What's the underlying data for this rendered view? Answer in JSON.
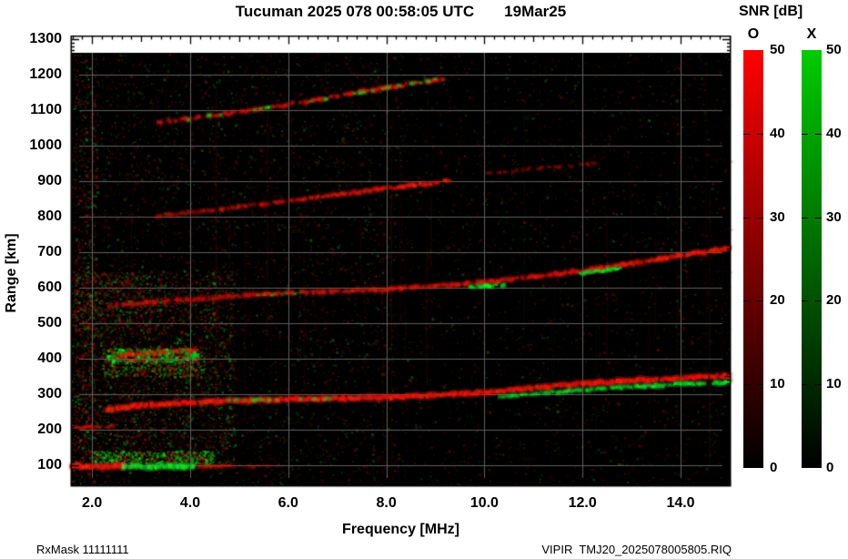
{
  "header": {
    "title": "Tucuman 2025 078 00:58:05 UTC",
    "date": "19Mar25"
  },
  "axes": {
    "x": {
      "label": "Frequency [MHz]",
      "ticks": [
        "2.0",
        "4.0",
        "6.0",
        "8.0",
        "10.0",
        "12.0",
        "14.0"
      ],
      "tick_values": [
        2,
        4,
        6,
        8,
        10,
        12,
        14
      ],
      "minor_step_mhz": 0.2
    },
    "y": {
      "label": "Range [km]",
      "ticks": [
        "100",
        "200",
        "300",
        "400",
        "500",
        "600",
        "700",
        "800",
        "900",
        "1000",
        "1100",
        "1200",
        "1300"
      ],
      "tick_values": [
        100,
        200,
        300,
        400,
        500,
        600,
        700,
        800,
        900,
        1000,
        1100,
        1200,
        1300
      ],
      "minor_step_km": 10
    }
  },
  "colorbar": {
    "title": "SNR [dB]",
    "min": 0,
    "max": 50,
    "ticks": [
      "50",
      "40",
      "30",
      "20",
      "10",
      "0"
    ],
    "tick_values": [
      50,
      40,
      30,
      20,
      10,
      0
    ],
    "bars": [
      {
        "label": "O",
        "color": "#ff0000"
      },
      {
        "label": "X",
        "color": "#00cc00"
      }
    ]
  },
  "footer": {
    "left": "RxMask 11111111",
    "right": "VIPIR  TMJ20_2025078005805.RIQ"
  },
  "chart_data": {
    "type": "heatmap",
    "kind": "ionogram",
    "station": "Tucuman",
    "title": "Tucuman 2025 078 00:58:05 UTC",
    "date": "19Mar25",
    "xlabel": "Frequency [MHz]",
    "ylabel": "Range [km]",
    "xlim": [
      1.57,
      15.02
    ],
    "ylim": [
      41,
      1309
    ],
    "data_range_km": [
      45,
      1260
    ],
    "grid": true,
    "grid_color": "#5f5f5f",
    "background": "#000000",
    "o_mode_color": "#ff0000",
    "x_mode_color": "#00cc00",
    "snr_scale_db": [
      0,
      50
    ],
    "traces": [
      {
        "name": "E-layer O-mode",
        "mode": "O",
        "w": 4,
        "a": 0.95,
        "gap": 0.04,
        "pts": [
          [
            1.57,
            97
          ],
          [
            2.7,
            97
          ]
        ]
      },
      {
        "name": "E-layer X-mode",
        "mode": "X",
        "w": 4,
        "a": 0.9,
        "gap": 0.08,
        "pts": [
          [
            2.6,
            96
          ],
          [
            4.1,
            96
          ]
        ]
      },
      {
        "name": "E-layer O-mode tail",
        "mode": "O",
        "w": 3,
        "a": 0.5,
        "gap": 0.25,
        "pts": [
          [
            4.1,
            97
          ],
          [
            4.8,
            97
          ]
        ]
      },
      {
        "name": "E-layer faint tail",
        "mode": "O",
        "w": 3,
        "a": 0.22,
        "gap": 0.45,
        "pts": [
          [
            4.8,
            97
          ],
          [
            5.8,
            97
          ]
        ]
      },
      {
        "name": "F-start low segment",
        "mode": "O",
        "w": 3,
        "a": 0.38,
        "gap": 0.3,
        "pts": [
          [
            1.57,
            205
          ],
          [
            2.5,
            211
          ]
        ]
      },
      {
        "name": "F 1-hop O-mode",
        "mode": "O",
        "w": 4,
        "a": 0.92,
        "gap": 0.03,
        "pts": [
          [
            2.3,
            258
          ],
          [
            3,
            268
          ],
          [
            4,
            277
          ],
          [
            5,
            282
          ],
          [
            6,
            286
          ],
          [
            7,
            288
          ],
          [
            8,
            291
          ],
          [
            9,
            297
          ],
          [
            10,
            305
          ],
          [
            11,
            318
          ],
          [
            12,
            329
          ],
          [
            13,
            338
          ],
          [
            14,
            345
          ],
          [
            15,
            352
          ]
        ]
      },
      {
        "name": "F 1-hop X-mode",
        "mode": "X",
        "w": 3.2,
        "a": 0.5,
        "a2": 0.95,
        "gap": 0.18,
        "pts": [
          [
            10.3,
            292
          ],
          [
            11,
            302
          ],
          [
            12,
            312
          ],
          [
            13,
            321
          ],
          [
            14,
            328
          ],
          [
            15,
            334
          ]
        ]
      },
      {
        "name": "F 1-hop X-mode patches",
        "mode": "X",
        "w": 3,
        "a": 0.45,
        "gap": 0.7,
        "pts": [
          [
            4.7,
            283
          ],
          [
            6.9,
            287
          ]
        ]
      },
      {
        "name": "Spread-echo streak O-mode",
        "mode": "O",
        "w": 3,
        "a": 0.5,
        "gap": 0.35,
        "pts": [
          [
            2.5,
            408
          ],
          [
            4.1,
            426
          ]
        ]
      },
      {
        "name": "F 2-hop O-mode",
        "mode": "O",
        "w": 3.8,
        "a": 0.42,
        "a2": 0.85,
        "gap": 0.12,
        "pts": [
          [
            2.3,
            549
          ],
          [
            3,
            557
          ],
          [
            4,
            567
          ],
          [
            5,
            577
          ],
          [
            6,
            585
          ],
          [
            7,
            590
          ],
          [
            8,
            596
          ],
          [
            9,
            605
          ],
          [
            10,
            616
          ],
          [
            11,
            631
          ],
          [
            12,
            648
          ],
          [
            13,
            668
          ],
          [
            14,
            690
          ],
          [
            15,
            712
          ]
        ]
      },
      {
        "name": "F 2-hop X-mode segment 1",
        "mode": "X",
        "w": 3,
        "a": 0.85,
        "gap": 0.15,
        "pts": [
          [
            9.7,
            601
          ],
          [
            10.4,
            608
          ]
        ]
      },
      {
        "name": "F 2-hop X-mode segment 2",
        "mode": "X",
        "w": 3,
        "a": 0.85,
        "gap": 0.15,
        "pts": [
          [
            11.95,
            640
          ],
          [
            12.8,
            655
          ]
        ]
      },
      {
        "name": "F 2-hop X-mode segment 3",
        "mode": "X",
        "w": 2.5,
        "a": 0.4,
        "gap": 0.5,
        "pts": [
          [
            5.3,
            578
          ],
          [
            6.2,
            585
          ]
        ]
      },
      {
        "name": "F 3-hop O-mode",
        "mode": "O",
        "w": 3.4,
        "a": 0.3,
        "a2": 0.85,
        "gap": 0.2,
        "pts": [
          [
            3.3,
            800
          ],
          [
            4,
            812
          ],
          [
            5,
            828
          ],
          [
            6,
            845
          ],
          [
            7,
            862
          ],
          [
            8,
            880
          ],
          [
            9,
            896
          ],
          [
            9.3,
            903
          ]
        ]
      },
      {
        "name": "F 3-hop faint extension",
        "mode": "O",
        "w": 3,
        "a": 0.3,
        "gap": 0.55,
        "pts": [
          [
            10,
            922
          ],
          [
            12.3,
            950
          ]
        ]
      },
      {
        "name": "F 4-hop O-mode",
        "mode": "O",
        "w": 3.4,
        "a": 0.42,
        "a2": 0.68,
        "gap": 0.25,
        "pts": [
          [
            3.3,
            1065
          ],
          [
            4.5,
            1085
          ],
          [
            5.5,
            1105
          ],
          [
            6.5,
            1127
          ],
          [
            7.5,
            1152
          ],
          [
            8.4,
            1172
          ],
          [
            9.2,
            1190
          ]
        ]
      },
      {
        "name": "F 4-hop X-mode specks",
        "mode": "X",
        "w": 3,
        "a": 0.55,
        "gap": 0.8,
        "pts": [
          [
            3.8,
            1073
          ],
          [
            5.0,
            1095
          ],
          [
            6.3,
            1122
          ],
          [
            7.3,
            1145
          ],
          [
            8.2,
            1168
          ],
          [
            9.0,
            1186
          ]
        ]
      }
    ],
    "noise": {
      "speckle_boxes": [
        {
          "n": 5200,
          "f": [
            1.57,
            15.02
          ],
          "km": [
            45,
            1260
          ],
          "green": 0.25,
          "alpha": [
            0.05,
            0.28
          ],
          "size": 2
        },
        {
          "n": 2400,
          "f": [
            1.57,
            8.2
          ],
          "km": [
            45,
            1260
          ],
          "green": 0.3,
          "alpha": [
            0.05,
            0.3
          ],
          "size": 2
        },
        {
          "n": 2600,
          "f": [
            1.57,
            4.9
          ],
          "km": [
            90,
            650
          ],
          "green": 0.38,
          "alpha": [
            0.08,
            0.45
          ],
          "size": 2
        },
        {
          "n": 700,
          "f": [
            1.57,
            2.1
          ],
          "km": [
            45,
            1260
          ],
          "green": 0.28,
          "alpha": [
            0.08,
            0.45
          ],
          "size": 2
        },
        {
          "n": 600,
          "f": [
            2.0,
            4.5
          ],
          "km": [
            100,
            142
          ],
          "green": 0.75,
          "alpha": [
            0.15,
            0.75
          ],
          "size": 2
        },
        {
          "n": 700,
          "f": [
            2.2,
            4.3
          ],
          "km": [
            350,
            432
          ],
          "green": 0.5,
          "alpha": [
            0.12,
            0.6
          ],
          "size": 2
        },
        {
          "n": 260,
          "f": [
            2.3,
            4.15
          ],
          "km": [
            395,
            430
          ],
          "green": 0.72,
          "alpha": [
            0.35,
            0.9
          ],
          "size": 3
        },
        {
          "n": 500,
          "f": [
            1.57,
            3.2
          ],
          "km": [
            480,
            645
          ],
          "green": 0.3,
          "alpha": [
            0.1,
            0.4
          ],
          "size": 2
        }
      ],
      "vertical_streaks": 60
    }
  }
}
